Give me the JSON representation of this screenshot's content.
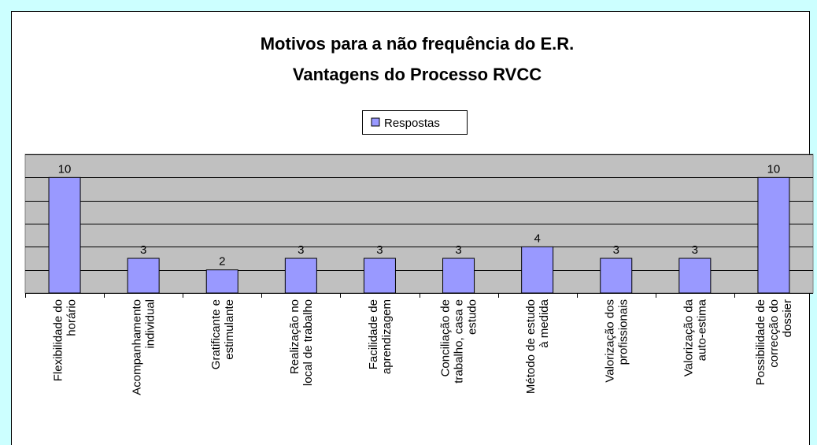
{
  "chart_data": {
    "type": "bar",
    "title": [
      "Motivos para a não frequência do E.R.",
      "Vantagens do Processo RVCC"
    ],
    "categories": [
      "Flexibilidade do horário",
      "Acompanhamento individual",
      "Gratificante e estimulante",
      "Realização no local de trabalho",
      "Facilidade de aprendizagem",
      "Conciliação de trabalho, casa e estudo",
      "Método de estudo à medida",
      "Valorização dos profissionais",
      "Valorização da auto-estima",
      "Possibilidade de correcção do dossier"
    ],
    "series": [
      {
        "name": "Respostas",
        "color": "#9999ff",
        "values": [
          10,
          3,
          2,
          3,
          3,
          3,
          4,
          3,
          3,
          10
        ]
      }
    ],
    "ylim": [
      0,
      12
    ],
    "yticks": [
      0,
      2,
      4,
      6,
      8,
      10,
      12
    ],
    "grid": true,
    "legend": "top"
  }
}
